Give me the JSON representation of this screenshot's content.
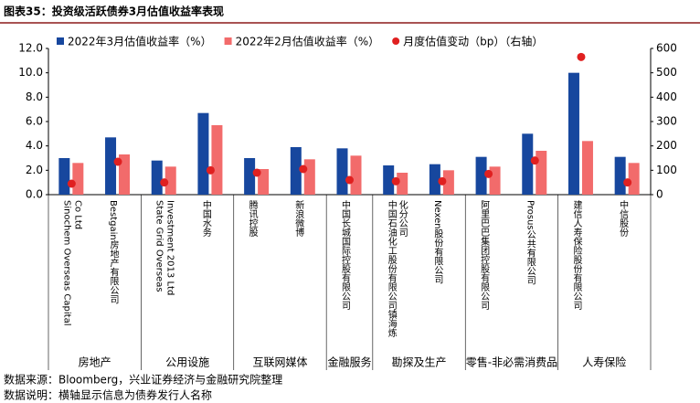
{
  "title": "图表35：投资级活跃债券3月估值收益率表现",
  "chart_data": {
    "type": "bar",
    "categories": [
      "Sinochem Overseas Capital Co Ltd",
      "Bestgain房地产有限公司",
      "State Grid Overseas Investment 2013 Ltd",
      "中国水务",
      "腾讯控股",
      "新浪微博",
      "中国长城国际控股有限公司",
      "中国石油化工股份有限公司镇海炼化分公司",
      "Nexen股份有限公司",
      "阿里巴巴集团控股有限公司",
      "Prosus公共有限公司",
      "建信人寿保险股份有限公司",
      "中信股份"
    ],
    "groups": [
      {
        "label": "房地产",
        "count": 2
      },
      {
        "label": "公用设施",
        "count": 2
      },
      {
        "label": "互联网媒体",
        "count": 2
      },
      {
        "label": "金融服务",
        "count": 1
      },
      {
        "label": "勘探及生产",
        "count": 2
      },
      {
        "label": "零售-非必需消费品",
        "count": 2
      },
      {
        "label": "人寿保险",
        "count": 2
      }
    ],
    "series": [
      {
        "name": "2022年3月估值收益率（%）",
        "color": "#17479e",
        "values": [
          3.0,
          4.7,
          2.8,
          6.7,
          3.0,
          3.9,
          3.8,
          2.4,
          2.5,
          3.1,
          5.0,
          10.0,
          3.1
        ]
      },
      {
        "name": "2022年2月估值收益率（%）",
        "color": "#f26b6b",
        "values": [
          2.6,
          3.3,
          2.3,
          5.7,
          2.1,
          2.9,
          3.2,
          1.8,
          2.0,
          2.3,
          3.6,
          4.4,
          2.6
        ]
      },
      {
        "name": "月度估值变动（bp）（右轴）",
        "color": "#e02020",
        "type": "scatter",
        "axis": "y2",
        "values": [
          45,
          135,
          50,
          100,
          90,
          105,
          60,
          55,
          55,
          85,
          140,
          565,
          50
        ]
      }
    ],
    "ylim": [
      0,
      12
    ],
    "yticks": [
      {
        "value": 0,
        "label": "0.0"
      },
      {
        "value": 2,
        "label": "2.0"
      },
      {
        "value": 4,
        "label": "4.0"
      },
      {
        "value": 6,
        "label": "6.0"
      },
      {
        "value": 8,
        "label": "8.0"
      },
      {
        "value": 10,
        "label": "10.0"
      },
      {
        "value": 12,
        "label": "12.0"
      }
    ],
    "y2lim": [
      0,
      600
    ],
    "y2ticks": [
      0,
      100,
      200,
      300,
      400,
      500,
      600
    ]
  },
  "footer": [
    "数据来源：Bloomberg，兴业证券经济与金融研究院整理",
    "数据说明：横轴显示信息为债券发行人名称"
  ]
}
